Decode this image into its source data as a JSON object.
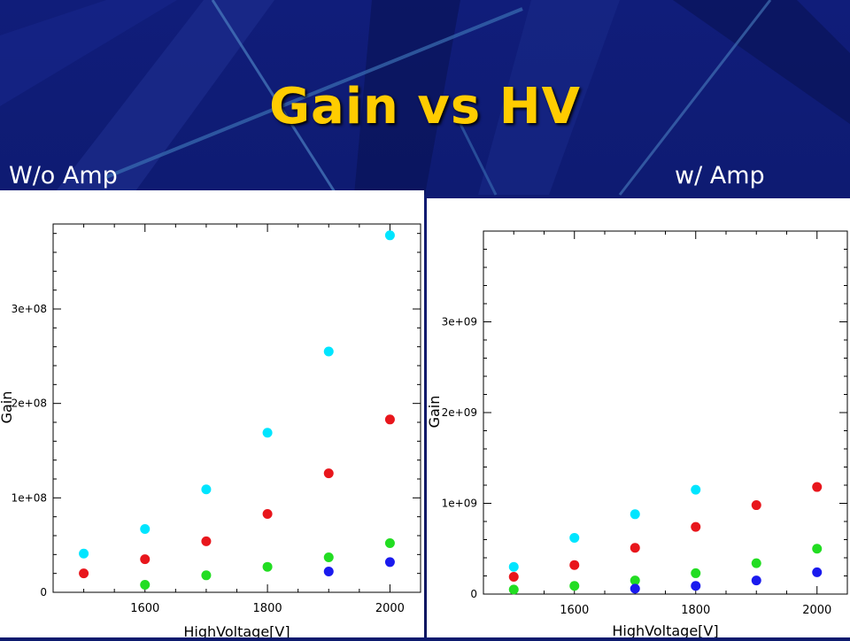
{
  "slide": {
    "title": "Gain vs HV",
    "caption_left": "W/o Amp",
    "caption_right": "w/ Amp",
    "colors": {
      "title": "#ffcc00",
      "background": "#0c1a6e"
    }
  },
  "chart_data": [
    {
      "type": "scatter",
      "xlabel": "HighVoltage[V]",
      "ylabel": "Gain",
      "xlim": [
        1450,
        2050
      ],
      "ylim": [
        0,
        390000000
      ],
      "xticks": [
        1600,
        1800,
        2000
      ],
      "xtick_labels": [
        "1600",
        "1800",
        "2000"
      ],
      "yticks": [
        0,
        100000000,
        200000000,
        300000000
      ],
      "ytick_labels": [
        "0",
        "1e+08",
        "2e+08",
        "3e+08"
      ],
      "series": [
        {
          "color": "#00e5ff",
          "x": [
            1500,
            1600,
            1700,
            1800,
            1900,
            2000
          ],
          "y": [
            41000000,
            67000000,
            109000000,
            169000000,
            255000000,
            378000000
          ]
        },
        {
          "color": "#e8161c",
          "x": [
            1500,
            1600,
            1700,
            1800,
            1900,
            2000
          ],
          "y": [
            20000000,
            35000000,
            54000000,
            83000000,
            126000000,
            183000000
          ]
        },
        {
          "color": "#22dd22",
          "x": [
            1600,
            1700,
            1800,
            1900,
            2000
          ],
          "y": [
            8000000,
            18000000,
            27000000,
            37000000,
            52000000
          ]
        },
        {
          "color": "#1a1aee",
          "x": [
            1900,
            2000
          ],
          "y": [
            22000000,
            32000000
          ]
        }
      ]
    },
    {
      "type": "scatter",
      "xlabel": "HighVoltage[V]",
      "ylabel": "Gain",
      "xlim": [
        1450,
        2050
      ],
      "ylim": [
        0,
        4000000000
      ],
      "xticks": [
        1600,
        1800,
        2000
      ],
      "xtick_labels": [
        "1600",
        "1800",
        "2000"
      ],
      "yticks": [
        0,
        1000000000,
        2000000000,
        3000000000
      ],
      "ytick_labels": [
        "0",
        "1e+09",
        "2e+09",
        "3e+09"
      ],
      "series": [
        {
          "color": "#00e5ff",
          "x": [
            1500,
            1600,
            1700,
            1800
          ],
          "y": [
            300000000,
            620000000,
            880000000,
            1150000000
          ]
        },
        {
          "color": "#e8161c",
          "x": [
            1500,
            1600,
            1700,
            1800,
            1900,
            2000
          ],
          "y": [
            190000000,
            320000000,
            510000000,
            740000000,
            980000000,
            1180000000
          ]
        },
        {
          "color": "#22dd22",
          "x": [
            1500,
            1600,
            1700,
            1800,
            1900,
            2000
          ],
          "y": [
            50000000,
            90000000,
            150000000,
            230000000,
            340000000,
            500000000
          ]
        },
        {
          "color": "#1a1aee",
          "x": [
            1700,
            1800,
            1900,
            2000
          ],
          "y": [
            60000000,
            90000000,
            150000000,
            240000000
          ]
        }
      ]
    }
  ]
}
